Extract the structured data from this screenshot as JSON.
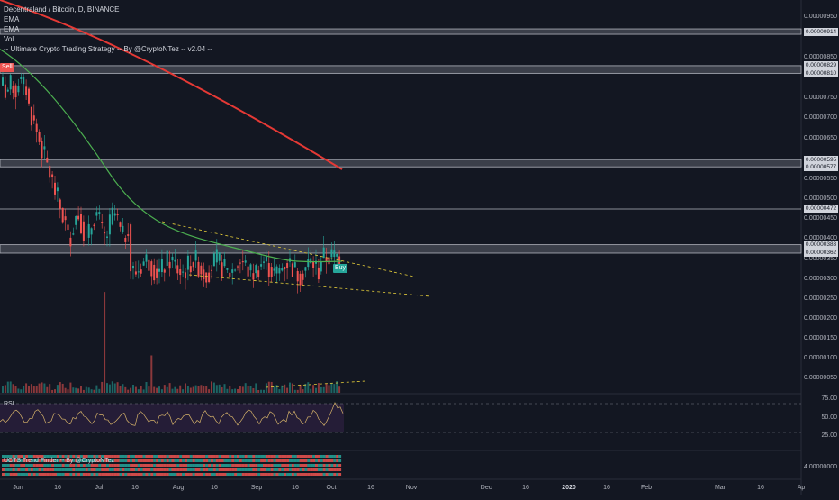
{
  "legend": {
    "symbol_line": "Decentraland / Bitcoin, D, BINANCE",
    "ema1": "EMA",
    "ema2": "EMA",
    "vol": "Vol",
    "strategy": "-- Ultimate Crypto Trading Strategy -- By @CryptoNTez -- v2.04 --"
  },
  "rsi_pane": {
    "label": "RSI",
    "ticks": [
      "75.00",
      "50.00",
      "25.00"
    ]
  },
  "trend_pane": {
    "label": "UCTS Trend Finder -- By @CryptoNTez",
    "tick": "4.00000000"
  },
  "signals": {
    "sell": "Sell",
    "buy": "Buy"
  },
  "price_axis": {
    "ticks": [
      "0.00000950",
      "0.00000850",
      "0.00000750",
      "0.00000700",
      "0.00000650",
      "0.00000550",
      "0.00000500",
      "0.00000450",
      "0.00000400",
      "0.00000350",
      "0.00000300",
      "0.00000250",
      "0.00000200",
      "0.00000150",
      "0.00000100",
      "0.00000050"
    ],
    "badges": [
      "0.00000914",
      "0.00000829",
      "0.00000810",
      "0.00000595",
      "0.00000577",
      "0.00000472",
      "0.00000383",
      "0.00000362"
    ]
  },
  "time_axis": {
    "labels": [
      {
        "t": "Jun",
        "bold": false
      },
      {
        "t": "16",
        "bold": false
      },
      {
        "t": "Jul",
        "bold": false
      },
      {
        "t": "16",
        "bold": false
      },
      {
        "t": "Aug",
        "bold": false
      },
      {
        "t": "16",
        "bold": false
      },
      {
        "t": "Sep",
        "bold": false
      },
      {
        "t": "16",
        "bold": false
      },
      {
        "t": "Oct",
        "bold": false
      },
      {
        "t": "16",
        "bold": false
      },
      {
        "t": "Nov",
        "bold": false
      },
      {
        "t": "Dec",
        "bold": false
      },
      {
        "t": "16",
        "bold": false
      },
      {
        "t": "2020",
        "bold": true
      },
      {
        "t": "16",
        "bold": false
      },
      {
        "t": "Feb",
        "bold": false
      },
      {
        "t": "Mar",
        "bold": false
      },
      {
        "t": "16",
        "bold": false
      },
      {
        "t": "Ap",
        "bold": false
      }
    ]
  },
  "colors": {
    "background": "#131722",
    "up": "#26a69a",
    "down": "#ef5350",
    "ema_fast": "#4caf50",
    "ema_slow": "#e53935",
    "zone": "#9598a1",
    "trendline": "#e8d03a",
    "rsi_line": "#d7b46a",
    "rsi_fill": "#2a1f3d"
  }
}
